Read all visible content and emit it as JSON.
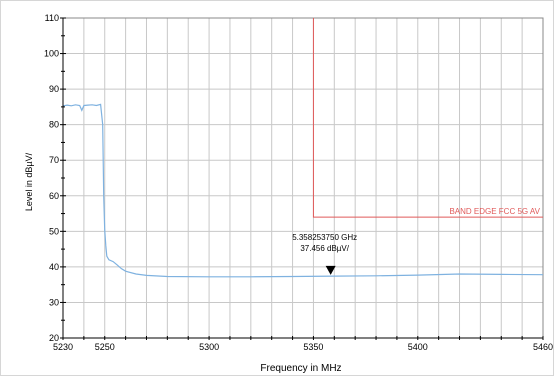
{
  "chart_data": {
    "type": "line",
    "title": "",
    "xlabel": "Frequency in MHz",
    "ylabel": "Level in dBµV/",
    "xlim": [
      5230,
      5460
    ],
    "ylim": [
      20,
      110
    ],
    "x_ticks": [
      5230,
      5250,
      5300,
      5350,
      5400,
      5460
    ],
    "y_ticks": [
      20,
      30,
      40,
      50,
      60,
      70,
      80,
      90,
      100,
      110
    ],
    "x_minor_gridlines": [
      5230,
      5240,
      5250,
      5260,
      5270,
      5280,
      5290,
      5300,
      5310,
      5320,
      5330,
      5340,
      5350,
      5360,
      5370,
      5380,
      5390,
      5400,
      5410,
      5420,
      5430,
      5440,
      5450,
      5460
    ],
    "grid": true,
    "colors": {
      "trace": "#7fb2e0",
      "limit": "#e05a5a",
      "grid": "#c8c8c8",
      "axis": "#000000",
      "marker": "#000000"
    },
    "series": [
      {
        "name": "",
        "x": [
          5230,
          5232,
          5234,
          5236,
          5238,
          5239,
          5240,
          5242,
          5244,
          5246,
          5248,
          5249,
          5249.5,
          5250,
          5250.5,
          5251,
          5252,
          5254,
          5256,
          5258,
          5260,
          5265,
          5270,
          5280,
          5300,
          5320,
          5340,
          5360,
          5380,
          5400,
          5420,
          5440,
          5460
        ],
        "y": [
          85.3,
          85.5,
          85.3,
          85.6,
          85.4,
          84.0,
          85.4,
          85.5,
          85.6,
          85.4,
          85.7,
          80.0,
          60.0,
          50.5,
          46.0,
          43.0,
          42.0,
          41.5,
          40.5,
          39.5,
          38.8,
          38.0,
          37.6,
          37.3,
          37.2,
          37.2,
          37.3,
          37.4,
          37.5,
          37.7,
          38.0,
          37.9,
          37.8
        ]
      }
    ],
    "limit_line": {
      "label": "BAND EDGE  FCC 5G AV",
      "x_start": 5350,
      "x_end": 5460,
      "y_level": 54,
      "y_top": 110
    },
    "marker": {
      "x": 5358.25375,
      "y": 37.456,
      "freq_label": "5.358253750 GHz",
      "level_label": "37.456 dBµV/"
    }
  }
}
